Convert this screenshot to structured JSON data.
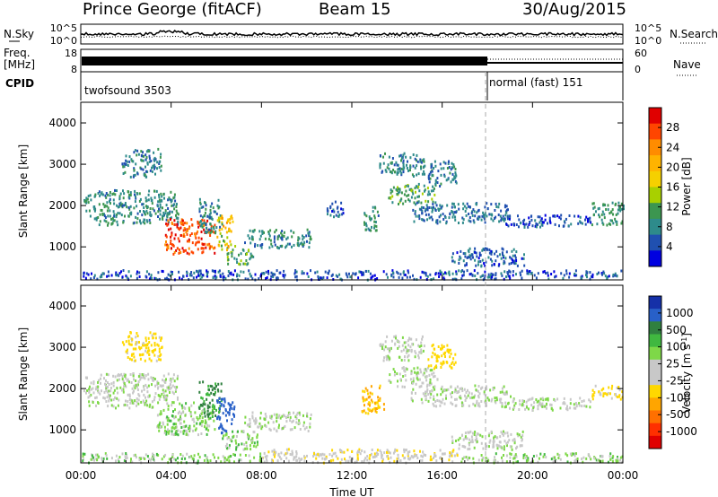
{
  "header": {
    "station": "Prince George (fitACF)",
    "beam": "Beam 15",
    "date": "30/Aug/2015"
  },
  "summary_panel": {
    "left_labels": [
      "N.Sky",
      "Freq.",
      "[MHz]",
      "CPID"
    ],
    "right_labels": [
      "N.Search",
      "Nave"
    ],
    "nsky_ticks": [
      "10^5",
      "10^0"
    ],
    "nsearch_ticks": [
      "10^5",
      "10^0"
    ],
    "freq_ticks": [
      "18",
      "8"
    ],
    "nave_ticks": [
      "60",
      "0"
    ],
    "cpid_segments": [
      {
        "name": "twofsound",
        "id": "3503",
        "label": "twofsound 3503",
        "start_hour": 0,
        "end_hour": 18
      },
      {
        "name": "normal (fast)",
        "id": "151",
        "label": "normal (fast) 151",
        "start_hour": 18,
        "end_hour": 24
      }
    ]
  },
  "chart_data": [
    {
      "type": "heatmap",
      "name": "power",
      "ylabel": "Slant Range [km]",
      "ylim": [
        200,
        4500
      ],
      "yticks": [
        "1000",
        "2000",
        "3000",
        "4000"
      ],
      "colorbar_label": "Power [dB]",
      "colorbar_ticks": [
        "28",
        "24",
        "20",
        "16",
        "12",
        "8",
        "4"
      ],
      "colorbar_colors": [
        "#e00000",
        "#ff4500",
        "#ff8c00",
        "#ffb300",
        "#f5d000",
        "#a8d000",
        "#3c9650",
        "#2e8b8b",
        "#2050b0",
        "#0000e0"
      ],
      "blobs": [
        {
          "t0": 0.1,
          "t1": 4.3,
          "r0": 1550,
          "r1": 2400,
          "level": 11
        },
        {
          "t0": 1.8,
          "t1": 3.6,
          "r0": 2700,
          "r1": 3400,
          "level": 9
        },
        {
          "t0": 3.7,
          "t1": 5.9,
          "r0": 850,
          "r1": 1700,
          "level": 26
        },
        {
          "t0": 5.2,
          "t1": 6.2,
          "r0": 1350,
          "r1": 2200,
          "level": 10
        },
        {
          "t0": 6.0,
          "t1": 6.8,
          "r0": 950,
          "r1": 1800,
          "level": 19
        },
        {
          "t0": 6.4,
          "t1": 7.6,
          "r0": 600,
          "r1": 1000,
          "level": 14
        },
        {
          "t0": 7.2,
          "t1": 10.2,
          "r0": 1000,
          "r1": 1450,
          "level": 10
        },
        {
          "t0": 10.8,
          "t1": 11.6,
          "r0": 1750,
          "r1": 2150,
          "level": 7
        },
        {
          "t0": 12.5,
          "t1": 13.2,
          "r0": 1400,
          "r1": 2000,
          "level": 11
        },
        {
          "t0": 13.2,
          "t1": 15.2,
          "r0": 2700,
          "r1": 3300,
          "level": 10
        },
        {
          "t0": 13.6,
          "t1": 15.8,
          "r0": 2050,
          "r1": 2550,
          "level": 13
        },
        {
          "t0": 15.3,
          "t1": 16.6,
          "r0": 2500,
          "r1": 3100,
          "level": 9
        },
        {
          "t0": 14.6,
          "t1": 19.0,
          "r0": 1600,
          "r1": 2100,
          "level": 8
        },
        {
          "t0": 16.4,
          "t1": 19.6,
          "r0": 550,
          "r1": 1000,
          "level": 7
        },
        {
          "t0": 18.6,
          "t1": 22.7,
          "r0": 1500,
          "r1": 1800,
          "level": 5
        },
        {
          "t0": 22.6,
          "t1": 24.0,
          "r0": 1550,
          "r1": 2100,
          "level": 12
        },
        {
          "t0": 0.0,
          "t1": 24.0,
          "r0": 230,
          "r1": 460,
          "level": 6
        }
      ]
    },
    {
      "type": "heatmap",
      "name": "velocity",
      "ylabel": "Slant Range [km]",
      "ylim": [
        200,
        4500
      ],
      "yticks": [
        "1000",
        "2000",
        "3000",
        "4000"
      ],
      "colorbar_label": "Velocity [m s^-1]",
      "colorbar_ticks": [
        "1000",
        "500",
        "100",
        "25",
        "-25",
        "-100",
        "-500",
        "-1000"
      ],
      "colorbar_colors": [
        "#1530a8",
        "#2860c8",
        "#308040",
        "#40b840",
        "#7ed848",
        "#c8c8c8",
        "#c8c8c8",
        "#ffd800",
        "#ffa500",
        "#ff7000",
        "#ff3000",
        "#e00000"
      ],
      "blobs": [
        {
          "t0": 0.1,
          "t1": 4.3,
          "r0": 1550,
          "r1": 2400,
          "level": 0
        },
        {
          "t0": 1.8,
          "t1": 3.6,
          "r0": 2700,
          "r1": 3400,
          "level": -150
        },
        {
          "t0": 3.3,
          "t1": 5.9,
          "r0": 900,
          "r1": 1700,
          "level": 60
        },
        {
          "t0": 5.2,
          "t1": 6.2,
          "r0": 1350,
          "r1": 2200,
          "level": 300
        },
        {
          "t0": 6.0,
          "t1": 6.8,
          "r0": 950,
          "r1": 1800,
          "level": 600
        },
        {
          "t0": 6.2,
          "t1": 7.8,
          "r0": 550,
          "r1": 1000,
          "level": 80
        },
        {
          "t0": 7.2,
          "t1": 10.2,
          "r0": 1000,
          "r1": 1450,
          "level": 0
        },
        {
          "t0": 12.4,
          "t1": 13.4,
          "r0": 1400,
          "r1": 2100,
          "level": -300
        },
        {
          "t0": 13.2,
          "t1": 15.2,
          "r0": 2700,
          "r1": 3300,
          "level": 0
        },
        {
          "t0": 13.6,
          "t1": 15.8,
          "r0": 2050,
          "r1": 2550,
          "level": 0
        },
        {
          "t0": 15.3,
          "t1": 16.6,
          "r0": 2500,
          "r1": 3100,
          "level": -200
        },
        {
          "t0": 14.6,
          "t1": 19.0,
          "r0": 1600,
          "r1": 2100,
          "level": 0
        },
        {
          "t0": 16.4,
          "t1": 19.6,
          "r0": 550,
          "r1": 1000,
          "level": 0
        },
        {
          "t0": 18.6,
          "t1": 22.7,
          "r0": 1500,
          "r1": 1800,
          "level": 0
        },
        {
          "t0": 22.6,
          "t1": 24.0,
          "r0": 1750,
          "r1": 2100,
          "level": -120
        },
        {
          "t0": 8.0,
          "t1": 16.8,
          "r0": 230,
          "r1": 560,
          "level": -60
        },
        {
          "t0": 0.0,
          "t1": 8.0,
          "r0": 230,
          "r1": 460,
          "level": 50
        },
        {
          "t0": 16.8,
          "t1": 24.0,
          "r0": 230,
          "r1": 460,
          "level": 40
        }
      ]
    }
  ],
  "time_axis": {
    "label": "Time UT",
    "ticks": [
      "00:00",
      "04:00",
      "08:00",
      "12:00",
      "16:00",
      "20:00",
      "00:00"
    ],
    "hours": [
      0,
      4,
      8,
      12,
      16,
      20,
      24
    ]
  }
}
